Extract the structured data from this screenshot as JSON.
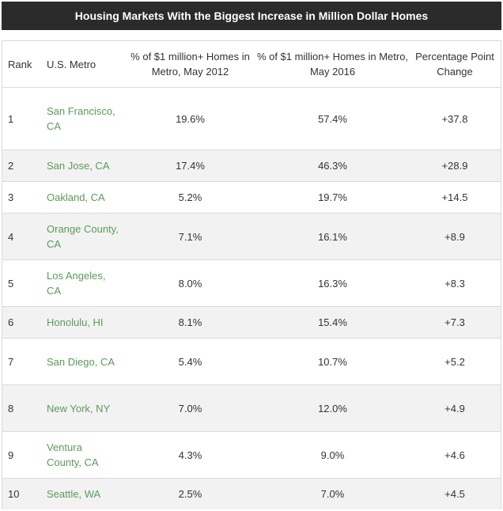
{
  "chart_data": {
    "type": "table",
    "title": "Housing Markets With the Biggest Increase in Million Dollar Homes",
    "columns": [
      "Rank",
      "U.S. Metro",
      "% of $1 million+ Homes in Metro, May 2012",
      "% of $1 million+ Homes in Metro, May 2016",
      "Percentage Point Change"
    ],
    "rows": [
      {
        "rank": "1",
        "metro": "San Francisco, CA",
        "pct_2012": "19.6%",
        "pct_2016": "57.4%",
        "change": "+37.8"
      },
      {
        "rank": "2",
        "metro": "San Jose, CA",
        "pct_2012": "17.4%",
        "pct_2016": "46.3%",
        "change": "+28.9"
      },
      {
        "rank": "3",
        "metro": "Oakland, CA",
        "pct_2012": "5.2%",
        "pct_2016": "19.7%",
        "change": "+14.5"
      },
      {
        "rank": "4",
        "metro": "Orange County, CA",
        "pct_2012": "7.1%",
        "pct_2016": "16.1%",
        "change": "+8.9"
      },
      {
        "rank": "5",
        "metro": "Los Angeles, CA",
        "pct_2012": "8.0%",
        "pct_2016": "16.3%",
        "change": "+8.3"
      },
      {
        "rank": "6",
        "metro": "Honolulu, HI",
        "pct_2012": "8.1%",
        "pct_2016": "15.4%",
        "change": "+7.3"
      },
      {
        "rank": "7",
        "metro": "San Diego, CA",
        "pct_2012": "5.4%",
        "pct_2016": "10.7%",
        "change": "+5.2"
      },
      {
        "rank": "8",
        "metro": "New York, NY",
        "pct_2012": "7.0%",
        "pct_2016": "12.0%",
        "change": "+4.9"
      },
      {
        "rank": "9",
        "metro": "Ventura County, CA",
        "pct_2012": "4.3%",
        "pct_2016": "9.0%",
        "change": "+4.6"
      },
      {
        "rank": "10",
        "metro": "Seattle, WA",
        "pct_2012": "2.5%",
        "pct_2016": "7.0%",
        "change": "+4.5"
      }
    ]
  },
  "colors": {
    "title_background": "#2b2b2b",
    "title_text": "#ffffff",
    "metro_link": "#5b9a5b",
    "alt_row": "#f2f2f2",
    "border": "#dadada"
  }
}
